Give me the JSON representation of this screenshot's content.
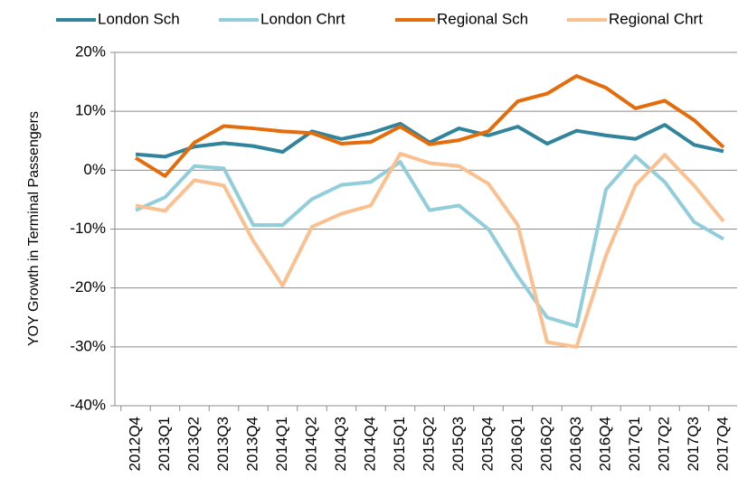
{
  "chart_data": {
    "type": "line",
    "y_label": "YOY Growth in Terminal Passengers",
    "categories": [
      "2012Q4",
      "2013Q1",
      "2013Q2",
      "2013Q3",
      "2013Q4",
      "2014Q1",
      "2014Q2",
      "2014Q3",
      "2014Q4",
      "2015Q1",
      "2015Q2",
      "2015Q3",
      "2015Q4",
      "2016Q1",
      "2016Q2",
      "2016Q3",
      "2016Q4",
      "2017Q1",
      "2017Q2",
      "2017Q3",
      "2017Q4"
    ],
    "series": [
      {
        "name": "London Sch",
        "color": "#31849b",
        "values": [
          2.7,
          2.3,
          4.0,
          4.6,
          4.1,
          3.1,
          6.6,
          5.3,
          6.3,
          7.9,
          4.7,
          7.1,
          5.9,
          7.4,
          4.5,
          6.7,
          5.9,
          5.3,
          7.7,
          4.3,
          3.2
        ]
      },
      {
        "name": "London Chrt",
        "color": "#92cddc",
        "values": [
          -6.8,
          -4.6,
          0.7,
          0.3,
          -9.3,
          -9.3,
          -4.9,
          -2.5,
          -2.0,
          1.4,
          -6.8,
          -6.0,
          -10.0,
          -18.0,
          -25.0,
          -26.5,
          -3.3,
          2.4,
          -2.0,
          -8.8,
          -11.7
        ]
      },
      {
        "name": "Regional Sch",
        "color": "#e46c0a",
        "values": [
          2.1,
          -1.0,
          4.7,
          7.5,
          7.1,
          6.6,
          6.3,
          4.5,
          4.8,
          7.4,
          4.4,
          5.1,
          6.6,
          11.7,
          13.0,
          16.0,
          14.0,
          10.5,
          11.8,
          8.5,
          3.9
        ]
      },
      {
        "name": "Regional Chrt",
        "color": "#fac090",
        "values": [
          -6.0,
          -6.9,
          -1.7,
          -2.6,
          -12.0,
          -19.6,
          -9.6,
          -7.4,
          -6.0,
          2.8,
          1.2,
          0.7,
          -2.3,
          -9.3,
          -29.2,
          -30.0,
          -14.5,
          -2.6,
          2.6,
          -2.6,
          -8.7
        ]
      }
    ],
    "ylim": [
      -40,
      20
    ],
    "yticks": [
      {
        "value": -40,
        "label": "-40%"
      },
      {
        "value": -30,
        "label": "-30%"
      },
      {
        "value": -20,
        "label": "-20%"
      },
      {
        "value": -10,
        "label": "-10%"
      },
      {
        "value": 0,
        "label": "0%"
      },
      {
        "value": 10,
        "label": "10%"
      },
      {
        "value": 20,
        "label": "20%"
      }
    ],
    "grid": true,
    "legend": "top"
  }
}
